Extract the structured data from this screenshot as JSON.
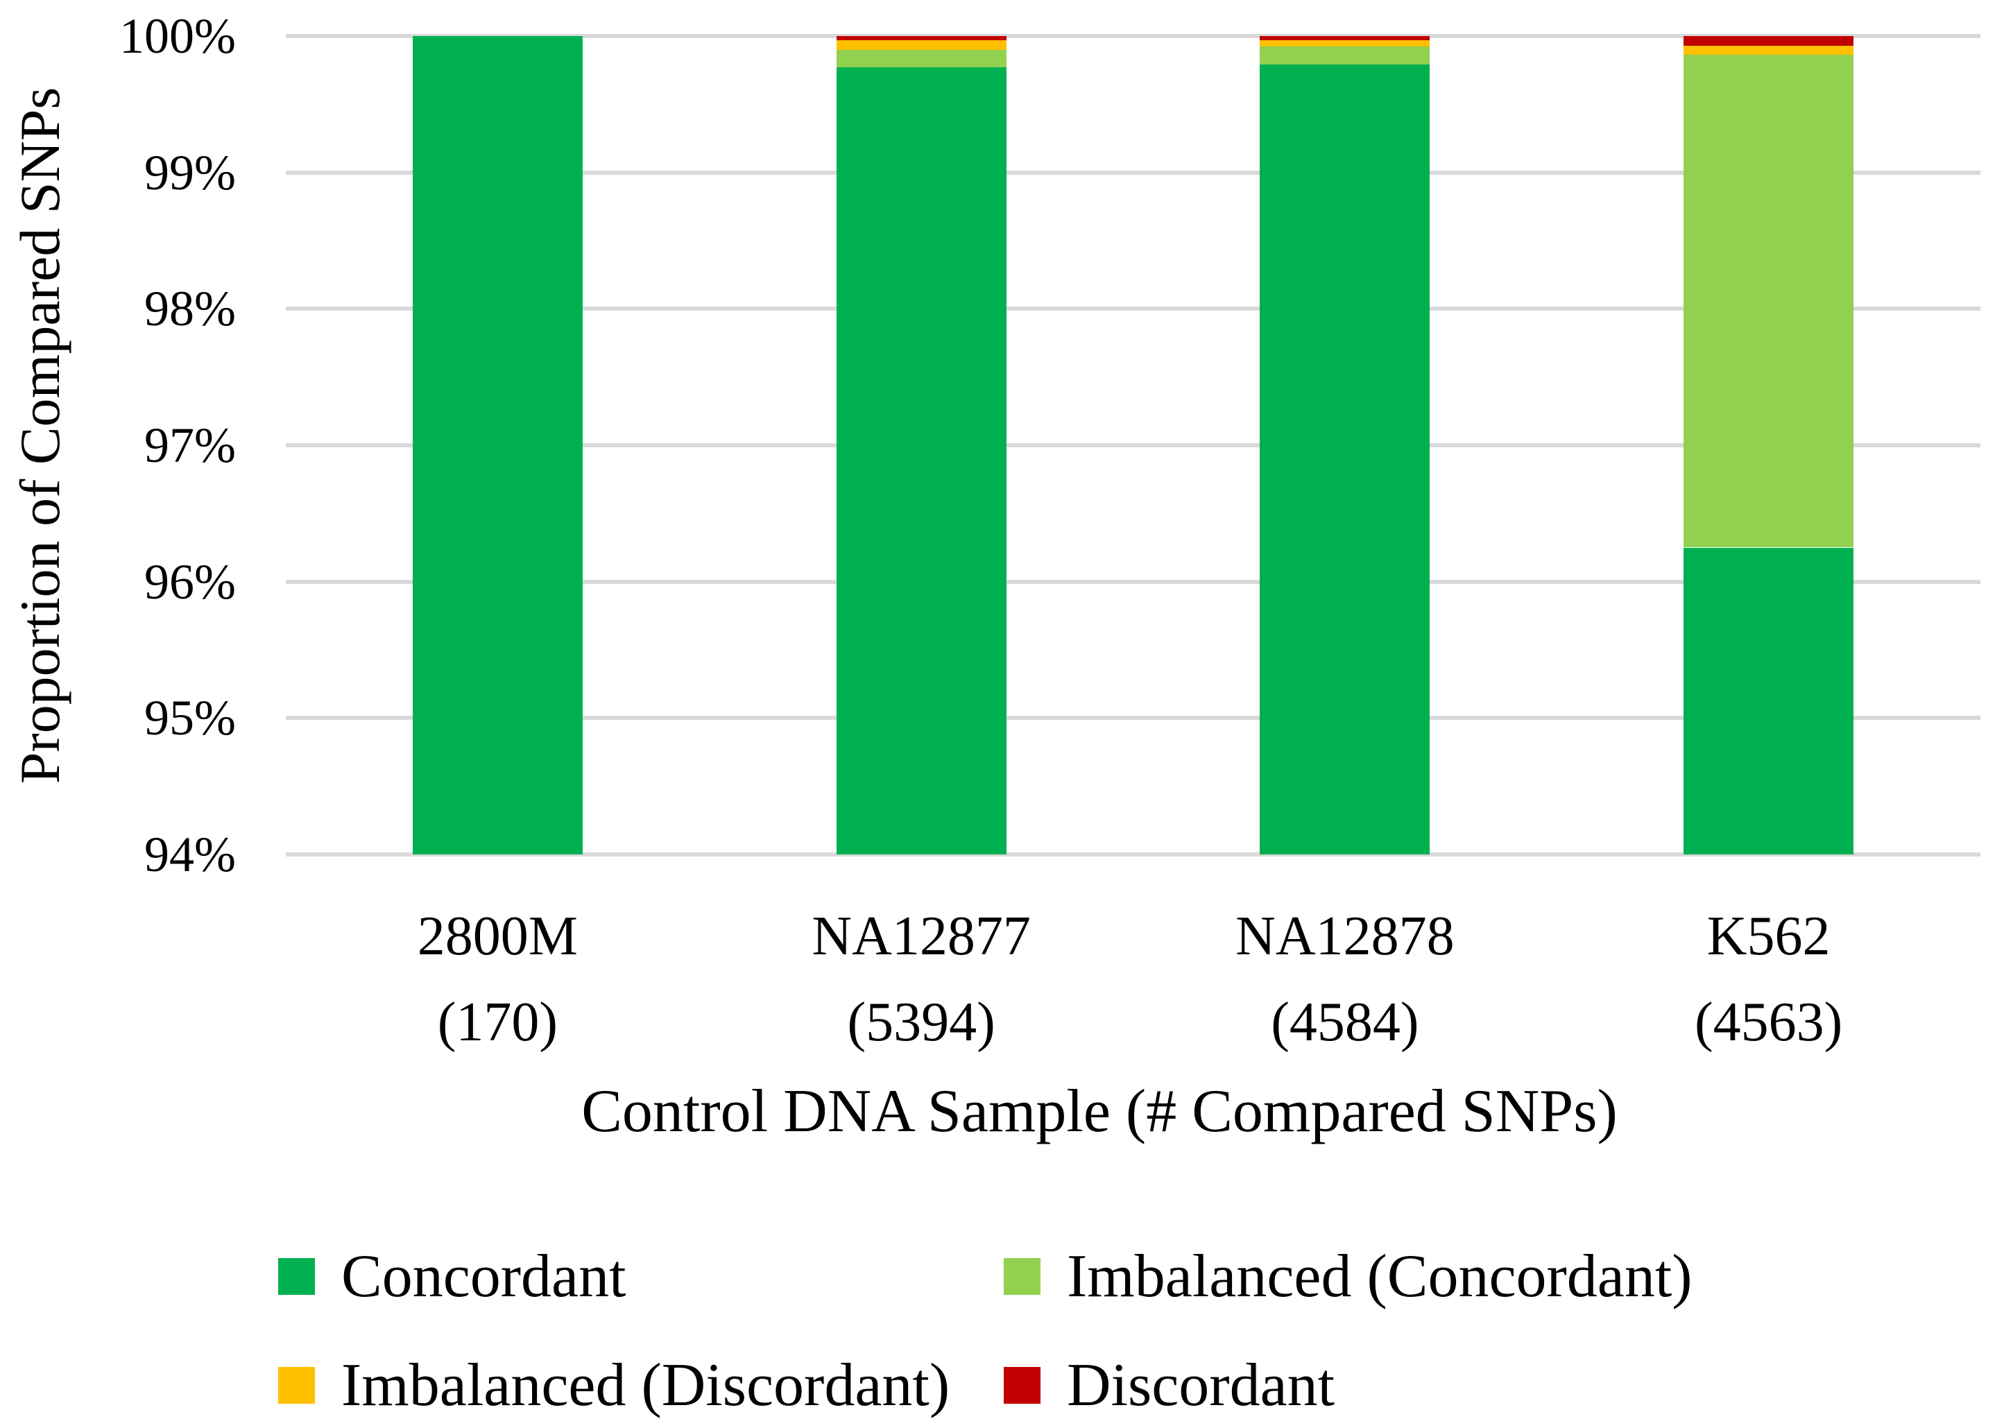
{
  "chart_data": {
    "type": "bar",
    "stacked": true,
    "orientation": "vertical",
    "xlabel": "Control DNA Sample (# Compared SNPs)",
    "ylabel": "Proportion of Compared SNPs",
    "ylim": [
      94,
      100
    ],
    "y_tick_labels": [
      "100%",
      "99%",
      "98%",
      "97%",
      "96%",
      "95%",
      "94%"
    ],
    "grid": true,
    "gridline_color": "#D9D9D9",
    "background_color": "#FFFFFF",
    "legend_position": "bottom",
    "categories": [
      {
        "name": "2800M",
        "count_label": "(170)"
      },
      {
        "name": "NA12877",
        "count_label": "(5394)"
      },
      {
        "name": "NA12878",
        "count_label": "(4584)"
      },
      {
        "name": "K562",
        "count_label": "(4563)"
      }
    ],
    "series": [
      {
        "name": "Concordant",
        "color": "#00B050",
        "values": [
          100,
          99.77,
          99.79,
          96.25
        ]
      },
      {
        "name": "Imbalanced (Concordant)",
        "color": "#92D050",
        "values": [
          0,
          0.13,
          0.135,
          3.615
        ]
      },
      {
        "name": "Imbalanced (Discordant)",
        "color": "#FFC000",
        "values": [
          0,
          0.07,
          0.045,
          0.065
        ]
      },
      {
        "name": "Discordant",
        "color": "#C00000",
        "values": [
          0,
          0.03,
          0.03,
          0.07
        ]
      }
    ]
  }
}
